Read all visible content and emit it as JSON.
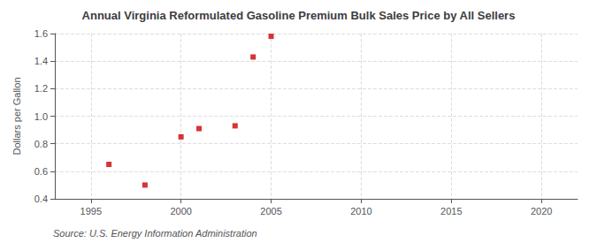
{
  "chart_data": {
    "type": "scatter",
    "title": "Annual Virginia Reformulated Gasoline Premium Bulk Sales Price by All Sellers",
    "ylabel": "Dollars per Gallon",
    "annotations": [
      "Source: U.S. Energy Information Administration"
    ],
    "x": [
      1996,
      1998,
      2000,
      2001,
      2003,
      2004,
      2005
    ],
    "values": [
      0.65,
      0.5,
      0.85,
      0.91,
      0.93,
      1.43,
      1.58
    ],
    "color": "#cc0000",
    "marker": "square",
    "xlim": [
      1993,
      2022
    ],
    "ylim": [
      0.4,
      1.6
    ],
    "xticks": [
      1995,
      2000,
      2005,
      2010,
      2015,
      2020
    ],
    "yticks": [
      0.4,
      0.6,
      0.8,
      {
        "value": 1.0,
        "label": "1.0"
      },
      1.2,
      1.4,
      1.6
    ],
    "grid": true
  }
}
